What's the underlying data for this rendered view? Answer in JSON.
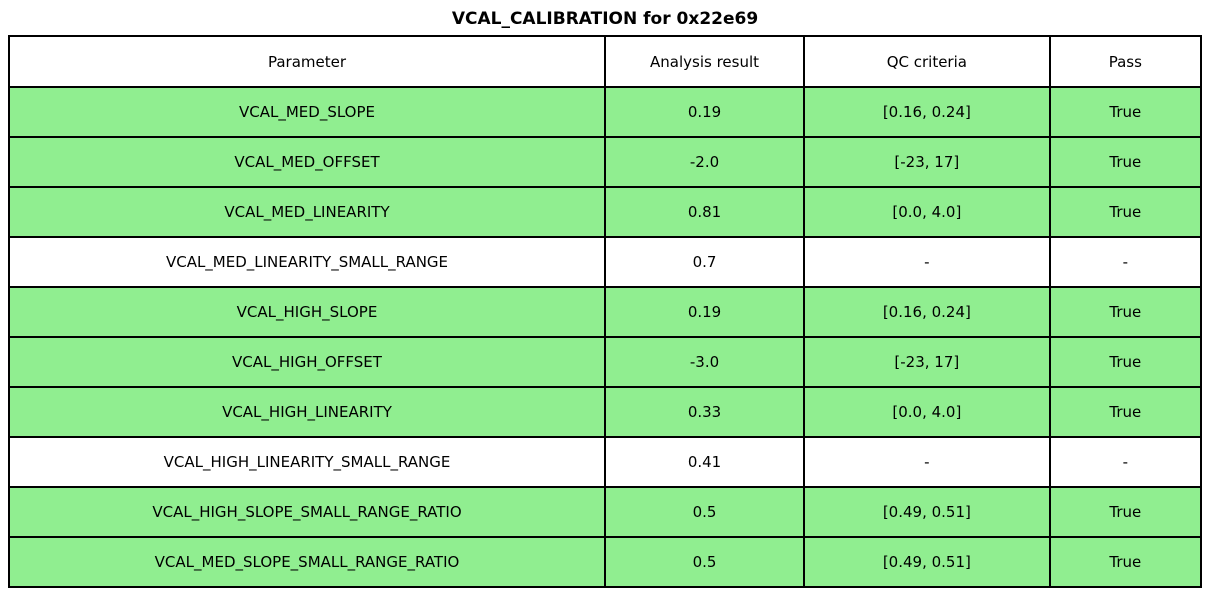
{
  "title": "VCAL_CALIBRATION for 0x22e69",
  "colors": {
    "pass_green": "#90EE90",
    "row_white": "#FFFFFF",
    "border": "#000000",
    "text": "#000000"
  },
  "table": {
    "headers": [
      "Parameter",
      "Analysis result",
      "QC criteria",
      "Pass"
    ],
    "rows": [
      {
        "parameter": "VCAL_MED_SLOPE",
        "analysis_result": "0.19",
        "qc_criteria": "[0.16, 0.24]",
        "pass": "True",
        "highlight": true
      },
      {
        "parameter": "VCAL_MED_OFFSET",
        "analysis_result": "-2.0",
        "qc_criteria": "[-23, 17]",
        "pass": "True",
        "highlight": true
      },
      {
        "parameter": "VCAL_MED_LINEARITY",
        "analysis_result": "0.81",
        "qc_criteria": "[0.0, 4.0]",
        "pass": "True",
        "highlight": true
      },
      {
        "parameter": "VCAL_MED_LINEARITY_SMALL_RANGE",
        "analysis_result": "0.7",
        "qc_criteria": "-",
        "pass": "-",
        "highlight": false
      },
      {
        "parameter": "VCAL_HIGH_SLOPE",
        "analysis_result": "0.19",
        "qc_criteria": "[0.16, 0.24]",
        "pass": "True",
        "highlight": true
      },
      {
        "parameter": "VCAL_HIGH_OFFSET",
        "analysis_result": "-3.0",
        "qc_criteria": "[-23, 17]",
        "pass": "True",
        "highlight": true
      },
      {
        "parameter": "VCAL_HIGH_LINEARITY",
        "analysis_result": "0.33",
        "qc_criteria": "[0.0, 4.0]",
        "pass": "True",
        "highlight": true
      },
      {
        "parameter": "VCAL_HIGH_LINEARITY_SMALL_RANGE",
        "analysis_result": "0.41",
        "qc_criteria": "-",
        "pass": "-",
        "highlight": false
      },
      {
        "parameter": "VCAL_HIGH_SLOPE_SMALL_RANGE_RATIO",
        "analysis_result": "0.5",
        "qc_criteria": "[0.49, 0.51]",
        "pass": "True",
        "highlight": true
      },
      {
        "parameter": "VCAL_MED_SLOPE_SMALL_RANGE_RATIO",
        "analysis_result": "0.5",
        "qc_criteria": "[0.49, 0.51]",
        "pass": "True",
        "highlight": true
      }
    ]
  },
  "chart_data": {
    "type": "table",
    "title": "VCAL_CALIBRATION for 0x22e69",
    "columns": [
      "Parameter",
      "Analysis result",
      "QC criteria",
      "Pass"
    ],
    "rows": [
      [
        "VCAL_MED_SLOPE",
        "0.19",
        "[0.16, 0.24]",
        "True"
      ],
      [
        "VCAL_MED_OFFSET",
        "-2.0",
        "[-23, 17]",
        "True"
      ],
      [
        "VCAL_MED_LINEARITY",
        "0.81",
        "[0.0, 4.0]",
        "True"
      ],
      [
        "VCAL_MED_LINEARITY_SMALL_RANGE",
        "0.7",
        "-",
        "-"
      ],
      [
        "VCAL_HIGH_SLOPE",
        "0.19",
        "[0.16, 0.24]",
        "True"
      ],
      [
        "VCAL_HIGH_OFFSET",
        "-3.0",
        "[-23, 17]",
        "True"
      ],
      [
        "VCAL_HIGH_LINEARITY",
        "0.33",
        "[0.0, 4.0]",
        "True"
      ],
      [
        "VCAL_HIGH_LINEARITY_SMALL_RANGE",
        "0.41",
        "-",
        "-"
      ],
      [
        "VCAL_HIGH_SLOPE_SMALL_RANGE_RATIO",
        "0.5",
        "[0.49, 0.51]",
        "True"
      ],
      [
        "VCAL_MED_SLOPE_SMALL_RANGE_RATIO",
        "0.5",
        "[0.49, 0.51]",
        "True"
      ]
    ],
    "layout_hints": {
      "row_highlight_color": "#90EE90",
      "unhighlighted_rows": [
        3,
        7
      ],
      "grid": true,
      "header_background": "#FFFFFF"
    }
  }
}
